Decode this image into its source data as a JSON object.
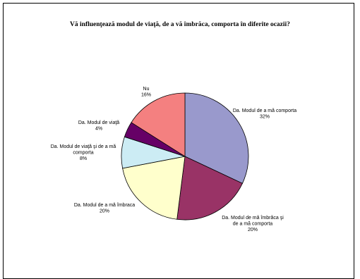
{
  "chart_data": {
    "type": "pie",
    "title": "Vă influenţează modul de viaţă, de a vă îmbrăca, comporta în diferite ocazii?",
    "legend": "none",
    "slices": [
      {
        "lines": [
          "Da. Modul de a mă comporta",
          "32%"
        ],
        "value": 32,
        "color": "#9999CC"
      },
      {
        "lines": [
          "Da. Modul de mă îmbrăca şi",
          "de a mă comporta",
          "20%"
        ],
        "value": 20,
        "color": "#993366"
      },
      {
        "lines": [
          "Da. Modul de a mă îmbraca",
          "20%"
        ],
        "value": 20,
        "color": "#FFFFCC"
      },
      {
        "lines": [
          "Da. Modul de viaţă şi de a mă",
          "comporta",
          "8%"
        ],
        "value": 8,
        "color": "#CCECF4"
      },
      {
        "lines": [
          "Da. Modul de viaţă",
          "4%"
        ],
        "value": 4,
        "color": "#660066"
      },
      {
        "lines": [
          "Nu",
          "16%"
        ],
        "value": 16,
        "color": "#F48080"
      }
    ]
  }
}
